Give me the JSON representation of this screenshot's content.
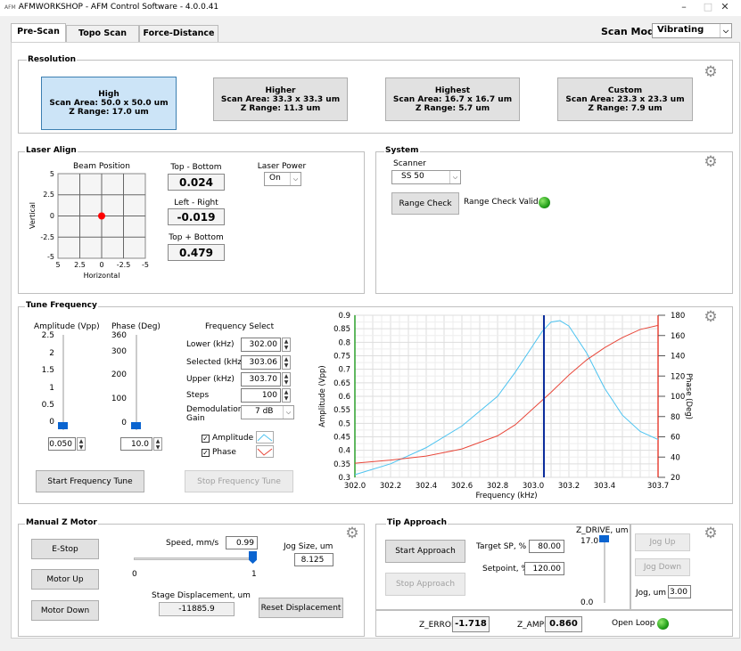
{
  "window": {
    "title": "AFMWORKSHOP - AFM Control Software - 4.0.0.41",
    "logo": "AFM",
    "min": "–",
    "max": "□",
    "close": "✕"
  },
  "tabs": [
    {
      "label": "Pre-Scan"
    },
    {
      "label": "Topo Scan"
    },
    {
      "label": "Force-Distance"
    }
  ],
  "scan_mode": {
    "label": "Scan Mode",
    "value": "Vibrating"
  },
  "resolution": {
    "title": "Resolution",
    "options": [
      {
        "name": "High",
        "area": "Scan Area: 50.0 x 50.0 um",
        "z": "Z Range: 17.0 um"
      },
      {
        "name": "Higher",
        "area": "Scan Area: 33.3 x 33.3 um",
        "z": "Z Range: 11.3 um"
      },
      {
        "name": "Highest",
        "area": "Scan Area: 16.7 x 16.7 um",
        "z": "Z Range: 5.7 um"
      },
      {
        "name": "Custom",
        "area": "Scan Area: 23.3 x 23.3 um",
        "z": "Z Range: 7.9 um"
      }
    ]
  },
  "laser": {
    "title": "Laser Align",
    "plot_title": "Beam Position",
    "ylabel": "Vertical",
    "xlabel": "Horizontal",
    "yticks": [
      "5",
      "2.5",
      "0",
      "-2.5",
      "-5"
    ],
    "xticks": [
      "5",
      "2.5",
      "0",
      "-2.5",
      "-5"
    ],
    "beam": {
      "x": 0,
      "y": 0
    },
    "tb_label": "Top - Bottom",
    "tb_value": "0.024",
    "lr_label": "Left - Right",
    "lr_value": "-0.019",
    "tpb_label": "Top + Bottom",
    "tpb_value": "0.479",
    "power_label": "Laser Power",
    "power_value": "On"
  },
  "system": {
    "title": "System",
    "scanner_label": "Scanner",
    "scanner_value": "SS 50",
    "range_check": "Range Check",
    "range_valid": "Range Check Valid"
  },
  "tune": {
    "title": "Tune Frequency",
    "amp_label": "Amplitude (Vpp)",
    "amp_ticks": [
      "2.5",
      "2",
      "1.5",
      "1",
      "0.5",
      "0"
    ],
    "amp_value": "0.050",
    "phase_label": "Phase (Deg)",
    "phase_ticks": [
      "360",
      "300",
      "200",
      "100",
      "0"
    ],
    "phase_value": "10.0",
    "freq_title": "Frequency Select",
    "lower_label": "Lower (kHz)",
    "lower": "302.00",
    "selected_label": "Selected (kHz)",
    "selected": "303.06",
    "upper_label": "Upper (kHz)",
    "upper": "303.70",
    "steps_label": "Steps",
    "steps": "100",
    "demod_label": "Demodulation Gain",
    "demod": "7 dB",
    "amp_chk": "Amplitude",
    "phase_chk": "Phase",
    "start": "Start Frequency Tune",
    "stop": "Stop Frequency Tune"
  },
  "chart_data": {
    "type": "line",
    "xlabel": "Frequency (kHz)",
    "ylabel": "Amplitude (Vpp)",
    "y2label": "Phase (Deg)",
    "xlim": [
      302.0,
      303.7
    ],
    "ylim": [
      0.3,
      0.9
    ],
    "y2lim": [
      20,
      180
    ],
    "xticks": [
      "302.0",
      "302.2",
      "302.4",
      "302.6",
      "302.8",
      "303.0",
      "303.2",
      "303.4",
      "303.7"
    ],
    "yticks": [
      "0.9",
      "0.85",
      "0.8",
      "0.75",
      "0.7",
      "0.65",
      "0.6",
      "0.55",
      "0.5",
      "0.45",
      "0.4",
      "0.35",
      "0.3"
    ],
    "y2ticks": [
      "180",
      "160",
      "140",
      "120",
      "100",
      "80",
      "60",
      "40",
      "20"
    ],
    "selected_x": 303.06,
    "series": [
      {
        "name": "Amplitude",
        "color": "#4cc3f0",
        "x": [
          302.0,
          302.2,
          302.4,
          302.6,
          302.8,
          302.9,
          303.0,
          303.05,
          303.1,
          303.15,
          303.2,
          303.3,
          303.4,
          303.5,
          303.6,
          303.7
        ],
        "y": [
          0.31,
          0.35,
          0.41,
          0.49,
          0.6,
          0.69,
          0.79,
          0.84,
          0.875,
          0.88,
          0.86,
          0.76,
          0.63,
          0.53,
          0.47,
          0.44
        ]
      },
      {
        "name": "Phase",
        "color": "#e8473a",
        "x": [
          302.0,
          302.2,
          302.4,
          302.6,
          302.8,
          302.9,
          303.0,
          303.1,
          303.2,
          303.3,
          303.4,
          303.5,
          303.6,
          303.7
        ],
        "y": [
          34,
          37,
          41,
          48,
          61,
          72,
          88,
          104,
          121,
          136,
          148,
          158,
          166,
          170
        ]
      }
    ]
  },
  "zmotor": {
    "title": "Manual Z Motor",
    "estop": "E-Stop",
    "up": "Motor Up",
    "down": "Motor Down",
    "speed_label": "Speed, mm/s",
    "speed": "0.99",
    "slider_min": "0",
    "slider_max": "1",
    "speed_fraction": 1.0,
    "jog_label": "Jog Size, um",
    "jog": "8.125",
    "disp_label": "Stage Displacement, um",
    "disp": "-11885.9",
    "reset": "Reset Displacement"
  },
  "approach": {
    "title": "Tip Approach",
    "start": "Start Approach",
    "stop": "Stop Approach",
    "target_label": "Target SP, %",
    "target": "80.00",
    "setpoint_label": "Setpoint, %",
    "setpoint": "120.00",
    "zdrive_label": "Z_DRIVE, um",
    "zdrive_top": "17.0",
    "zdrive_bottom": "0.0",
    "jog_up": "Jog Up",
    "jog_down": "Jog Down",
    "jog_label": "Jog, um",
    "jog": "3.00",
    "zerror_label": "Z_ERROR",
    "zerror": "-1.718",
    "zampl_label": "Z_AMPL",
    "zampl": "0.860",
    "open_loop": "Open Loop"
  }
}
